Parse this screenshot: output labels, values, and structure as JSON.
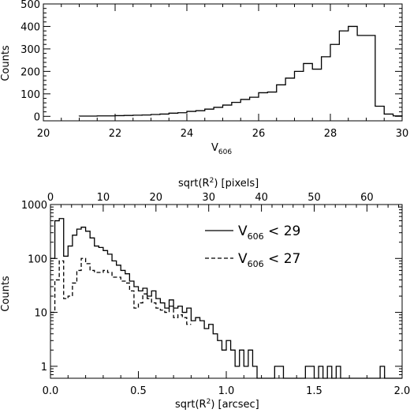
{
  "chart_data": [
    {
      "type": "histogram",
      "xlabel": "V",
      "xlabel_sub": "606",
      "ylabel": "Counts",
      "xlim": [
        20,
        30
      ],
      "ylim": [
        -20,
        500
      ],
      "xticks": [
        20,
        22,
        24,
        26,
        28,
        30
      ],
      "yticks": [
        0,
        100,
        200,
        300,
        400,
        500
      ],
      "bin_width": 0.25,
      "bins_start": [
        21.0,
        21.25,
        21.5,
        21.75,
        22.0,
        22.25,
        22.5,
        22.75,
        23.0,
        23.25,
        23.5,
        23.75,
        24.0,
        24.25,
        24.5,
        24.75,
        25.0,
        25.25,
        25.5,
        25.75,
        26.0,
        26.25,
        26.5,
        26.75,
        27.0,
        27.25,
        27.5,
        27.75,
        28.0,
        28.25,
        28.5,
        28.75,
        29.0,
        29.25,
        29.5,
        29.75
      ],
      "values": [
        1,
        1,
        2,
        2,
        3,
        4,
        5,
        6,
        8,
        10,
        14,
        16,
        22,
        25,
        32,
        40,
        50,
        62,
        75,
        85,
        105,
        108,
        140,
        170,
        200,
        235,
        210,
        265,
        320,
        380,
        400,
        360,
        360,
        45,
        10,
        2
      ],
      "grid": false
    },
    {
      "type": "histogram",
      "xlabel": "sqrt(R",
      "xlabel_sup": "2",
      "xlabel_end": ") [arcsec]",
      "top_xlabel": "sqrt(R",
      "top_xlabel_sup": "2",
      "top_xlabel_end": ") [pixels]",
      "ylabel": "Counts",
      "xlim": [
        0.0,
        2.0
      ],
      "ylim": [
        0.6,
        1000
      ],
      "yscale": "log",
      "xticks": [
        "0.0",
        "0.5",
        "1.0",
        "1.5",
        "2.0"
      ],
      "top_xticks": [
        "0",
        "10",
        "20",
        "30",
        "40",
        "50",
        "60"
      ],
      "yticks": [
        "1",
        "10",
        "100",
        "1000"
      ],
      "bin_width": 0.025,
      "grid": false,
      "legend_position": "top-right",
      "series": [
        {
          "name_main": "V",
          "name_sub": "606",
          "name_end": " < 29",
          "style": "solid",
          "values": [
            100,
            500,
            550,
            110,
            170,
            270,
            350,
            380,
            320,
            240,
            170,
            160,
            140,
            120,
            90,
            75,
            60,
            52,
            38,
            30,
            25,
            28,
            20,
            25,
            18,
            15,
            12,
            17,
            12,
            13,
            10,
            12,
            7,
            8,
            7,
            5,
            6,
            4,
            3,
            2,
            3,
            2,
            1,
            2,
            1,
            2,
            1,
            0.6,
            0.6,
            0.6,
            0.6,
            1,
            1,
            0.6,
            0.6,
            0.6,
            0.6,
            0.6,
            1,
            1,
            0.6,
            1,
            0.6,
            1,
            0.6,
            1,
            0.6,
            0.6,
            0.6,
            0.6,
            0.6,
            0.6,
            0.6,
            0.6,
            0.6,
            1,
            0.6,
            0.6,
            0.6,
            0.6
          ]
        },
        {
          "name_main": "V",
          "name_sub": "606",
          "name_end": " < 27",
          "style": "dashed",
          "values": [
            10,
            40,
            90,
            18,
            20,
            35,
            60,
            100,
            80,
            60,
            55,
            55,
            60,
            55,
            45,
            45,
            38,
            35,
            25,
            12,
            15,
            22,
            18,
            15,
            12,
            11,
            10,
            13,
            8,
            9,
            8,
            6
          ]
        }
      ]
    }
  ]
}
